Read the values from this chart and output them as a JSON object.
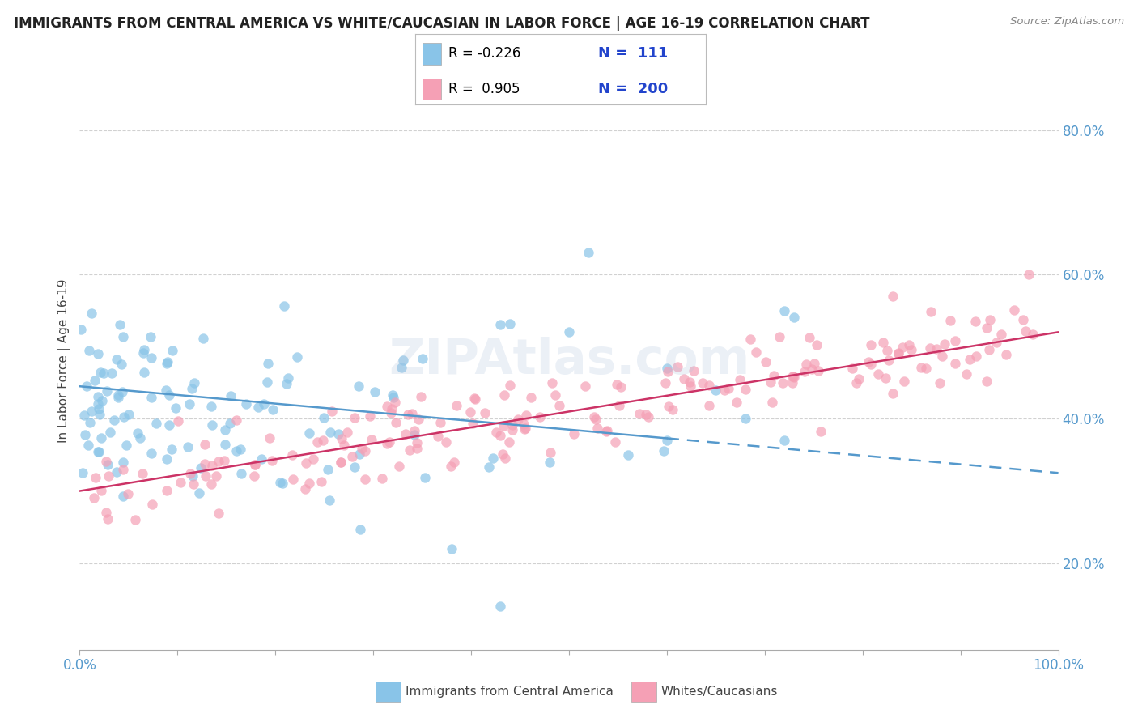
{
  "title": "IMMIGRANTS FROM CENTRAL AMERICA VS WHITE/CAUCASIAN IN LABOR FORCE | AGE 16-19 CORRELATION CHART",
  "source": "Source: ZipAtlas.com",
  "ylabel": "In Labor Force | Age 16-19",
  "xlim": [
    0.0,
    1.0
  ],
  "ylim": [
    0.08,
    0.88
  ],
  "yticks": [
    0.2,
    0.4,
    0.6,
    0.8
  ],
  "xticks": [
    0.0,
    0.1,
    0.2,
    0.3,
    0.4,
    0.5,
    0.6,
    0.7,
    0.8,
    0.9,
    1.0
  ],
  "xtick_label_show": [
    0.0,
    1.0
  ],
  "blue_R": -0.226,
  "blue_N": 111,
  "pink_R": 0.905,
  "pink_N": 200,
  "blue_color": "#89c4e8",
  "pink_color": "#f5a0b5",
  "blue_line_color": "#5599cc",
  "pink_line_color": "#cc3366",
  "scatter_size": 80,
  "scatter_alpha": 0.7,
  "legend_label_blue": "Immigrants from Central America",
  "legend_label_pink": "Whites/Caucasians",
  "watermark": "ZIPAtlas.com",
  "background_color": "#ffffff",
  "grid_color": "#cccccc",
  "tick_color": "#5599cc",
  "blue_trend_solid_end": 0.6,
  "blue_trend_start_y": 0.445,
  "blue_trend_end_y": 0.325,
  "pink_trend_start_y": 0.3,
  "pink_trend_end_y": 0.52
}
